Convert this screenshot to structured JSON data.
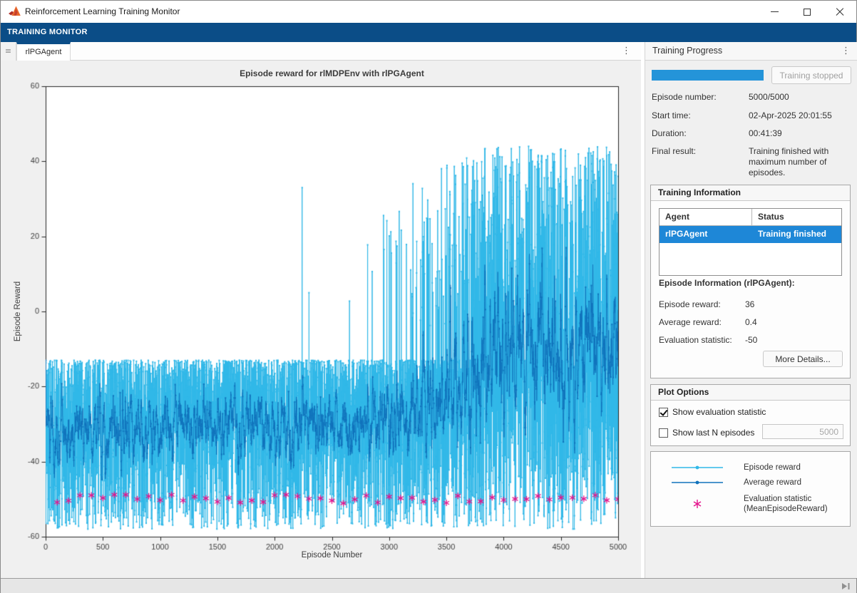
{
  "window": {
    "title": "Reinforcement Learning Training Monitor"
  },
  "ribbon": {
    "tab_label": "TRAINING MONITOR"
  },
  "document": {
    "tab_label": "rlPGAgent"
  },
  "right_panel": {
    "title": "Training Progress",
    "progress": {
      "percent": 100,
      "button_label": "Training stopped"
    },
    "fields": [
      {
        "label": "Episode number:",
        "value": "5000/5000"
      },
      {
        "label": "Start time:",
        "value": "02-Apr-2025 20:01:55"
      },
      {
        "label": "Duration:",
        "value": "00:41:39"
      },
      {
        "label": "Final result:",
        "value": "Training finished with maximum number of episodes."
      }
    ],
    "training_information": {
      "title": "Training Information",
      "table": {
        "headers": [
          "Agent",
          "Status"
        ],
        "rows": [
          {
            "agent": "rlPGAgent",
            "status": "Training finished",
            "selected": true
          }
        ]
      },
      "episode_info_title": "Episode Information (rlPGAgent):",
      "stats": [
        {
          "label": "Episode reward:",
          "value": "36"
        },
        {
          "label": "Average reward:",
          "value": "0.4"
        },
        {
          "label": "Evaluation statistic:",
          "value": "-50"
        }
      ],
      "more_details_label": "More Details..."
    },
    "plot_options": {
      "title": "Plot Options",
      "checkboxes": [
        {
          "label": "Show evaluation statistic",
          "checked": true
        },
        {
          "label": "Show last N episodes",
          "checked": false
        }
      ],
      "n_episodes_value": "5000"
    },
    "legend": {
      "entries": [
        {
          "label": "Episode reward",
          "color": "#30b8e8",
          "marker": "line-dot"
        },
        {
          "label": "Average reward",
          "color": "#1173bc",
          "marker": "line-dot"
        },
        {
          "label": "Evaluation statistic\n(MeanEpisodeReward)",
          "color": "#e4148c",
          "marker": "asterisk"
        }
      ]
    }
  },
  "chart_data": {
    "type": "line",
    "title": "Episode reward for rlMDPEnv with rlPGAgent",
    "xlabel": "Episode Number",
    "ylabel": "Episode Reward",
    "xlim": [
      0,
      5000
    ],
    "ylim": [
      -60,
      60
    ],
    "xticks": [
      0,
      500,
      1000,
      1500,
      2000,
      2500,
      3000,
      3500,
      4000,
      4500,
      5000
    ],
    "yticks": [
      -60,
      -40,
      -20,
      0,
      20,
      40,
      60
    ],
    "grid": false,
    "legend_position": "external-right-panel",
    "axes_color": "#262626",
    "background": "#ffffff",
    "figure_background": "#f0f0f0",
    "series": [
      {
        "name": "Episode reward",
        "color": "#30b8e8",
        "marker": "dot",
        "generation": {
          "seed": 7,
          "episodes": 5000,
          "base_range": [
            -58,
            -13
          ],
          "base_skew": 1.5,
          "explicit_spikes": [
            [
              2240,
              33
            ],
            [
              2300,
              5
            ]
          ],
          "spike_segments": [
            {
              "from": 2650,
              "to": 2950,
              "prob": 0.012,
              "range": [
                -5,
                27
              ]
            },
            {
              "from": 2950,
              "to": 3200,
              "prob": 0.035,
              "range": [
                -5,
                33
              ]
            },
            {
              "from": 3200,
              "to": 3500,
              "prob": 0.12,
              "range": [
                -5,
                40
              ]
            },
            {
              "from": 3500,
              "to": 3800,
              "prob": 0.22,
              "range": [
                0,
                42
              ]
            },
            {
              "from": 3800,
              "to": 5000,
              "prob": 0.42,
              "range": [
                -5,
                44
              ]
            }
          ],
          "final_value": 36
        }
      },
      {
        "name": "Average reward",
        "color": "#1173bc",
        "marker": "dot",
        "moving_average_window": 10,
        "final_value": 0.4
      },
      {
        "name": "Evaluation statistic (MeanEpisodeReward)",
        "color": "#e4148c",
        "marker": "asterisk",
        "interval": 100,
        "value": -50,
        "jitter": 1.2,
        "final_value": -50
      }
    ],
    "summary": "Episode reward oscillates between about -58 and -13 for episodes 0-2600; isolated spikes (about 33 near episode 2250) appear after 2200; spike frequency and height grow from about 2700, reaching about 44 for episodes 3800-5000. Average reward stays near -30 until about 3300 then climbs toward 0. Evaluation statistic markers sit at about -50 every 100 episodes."
  }
}
